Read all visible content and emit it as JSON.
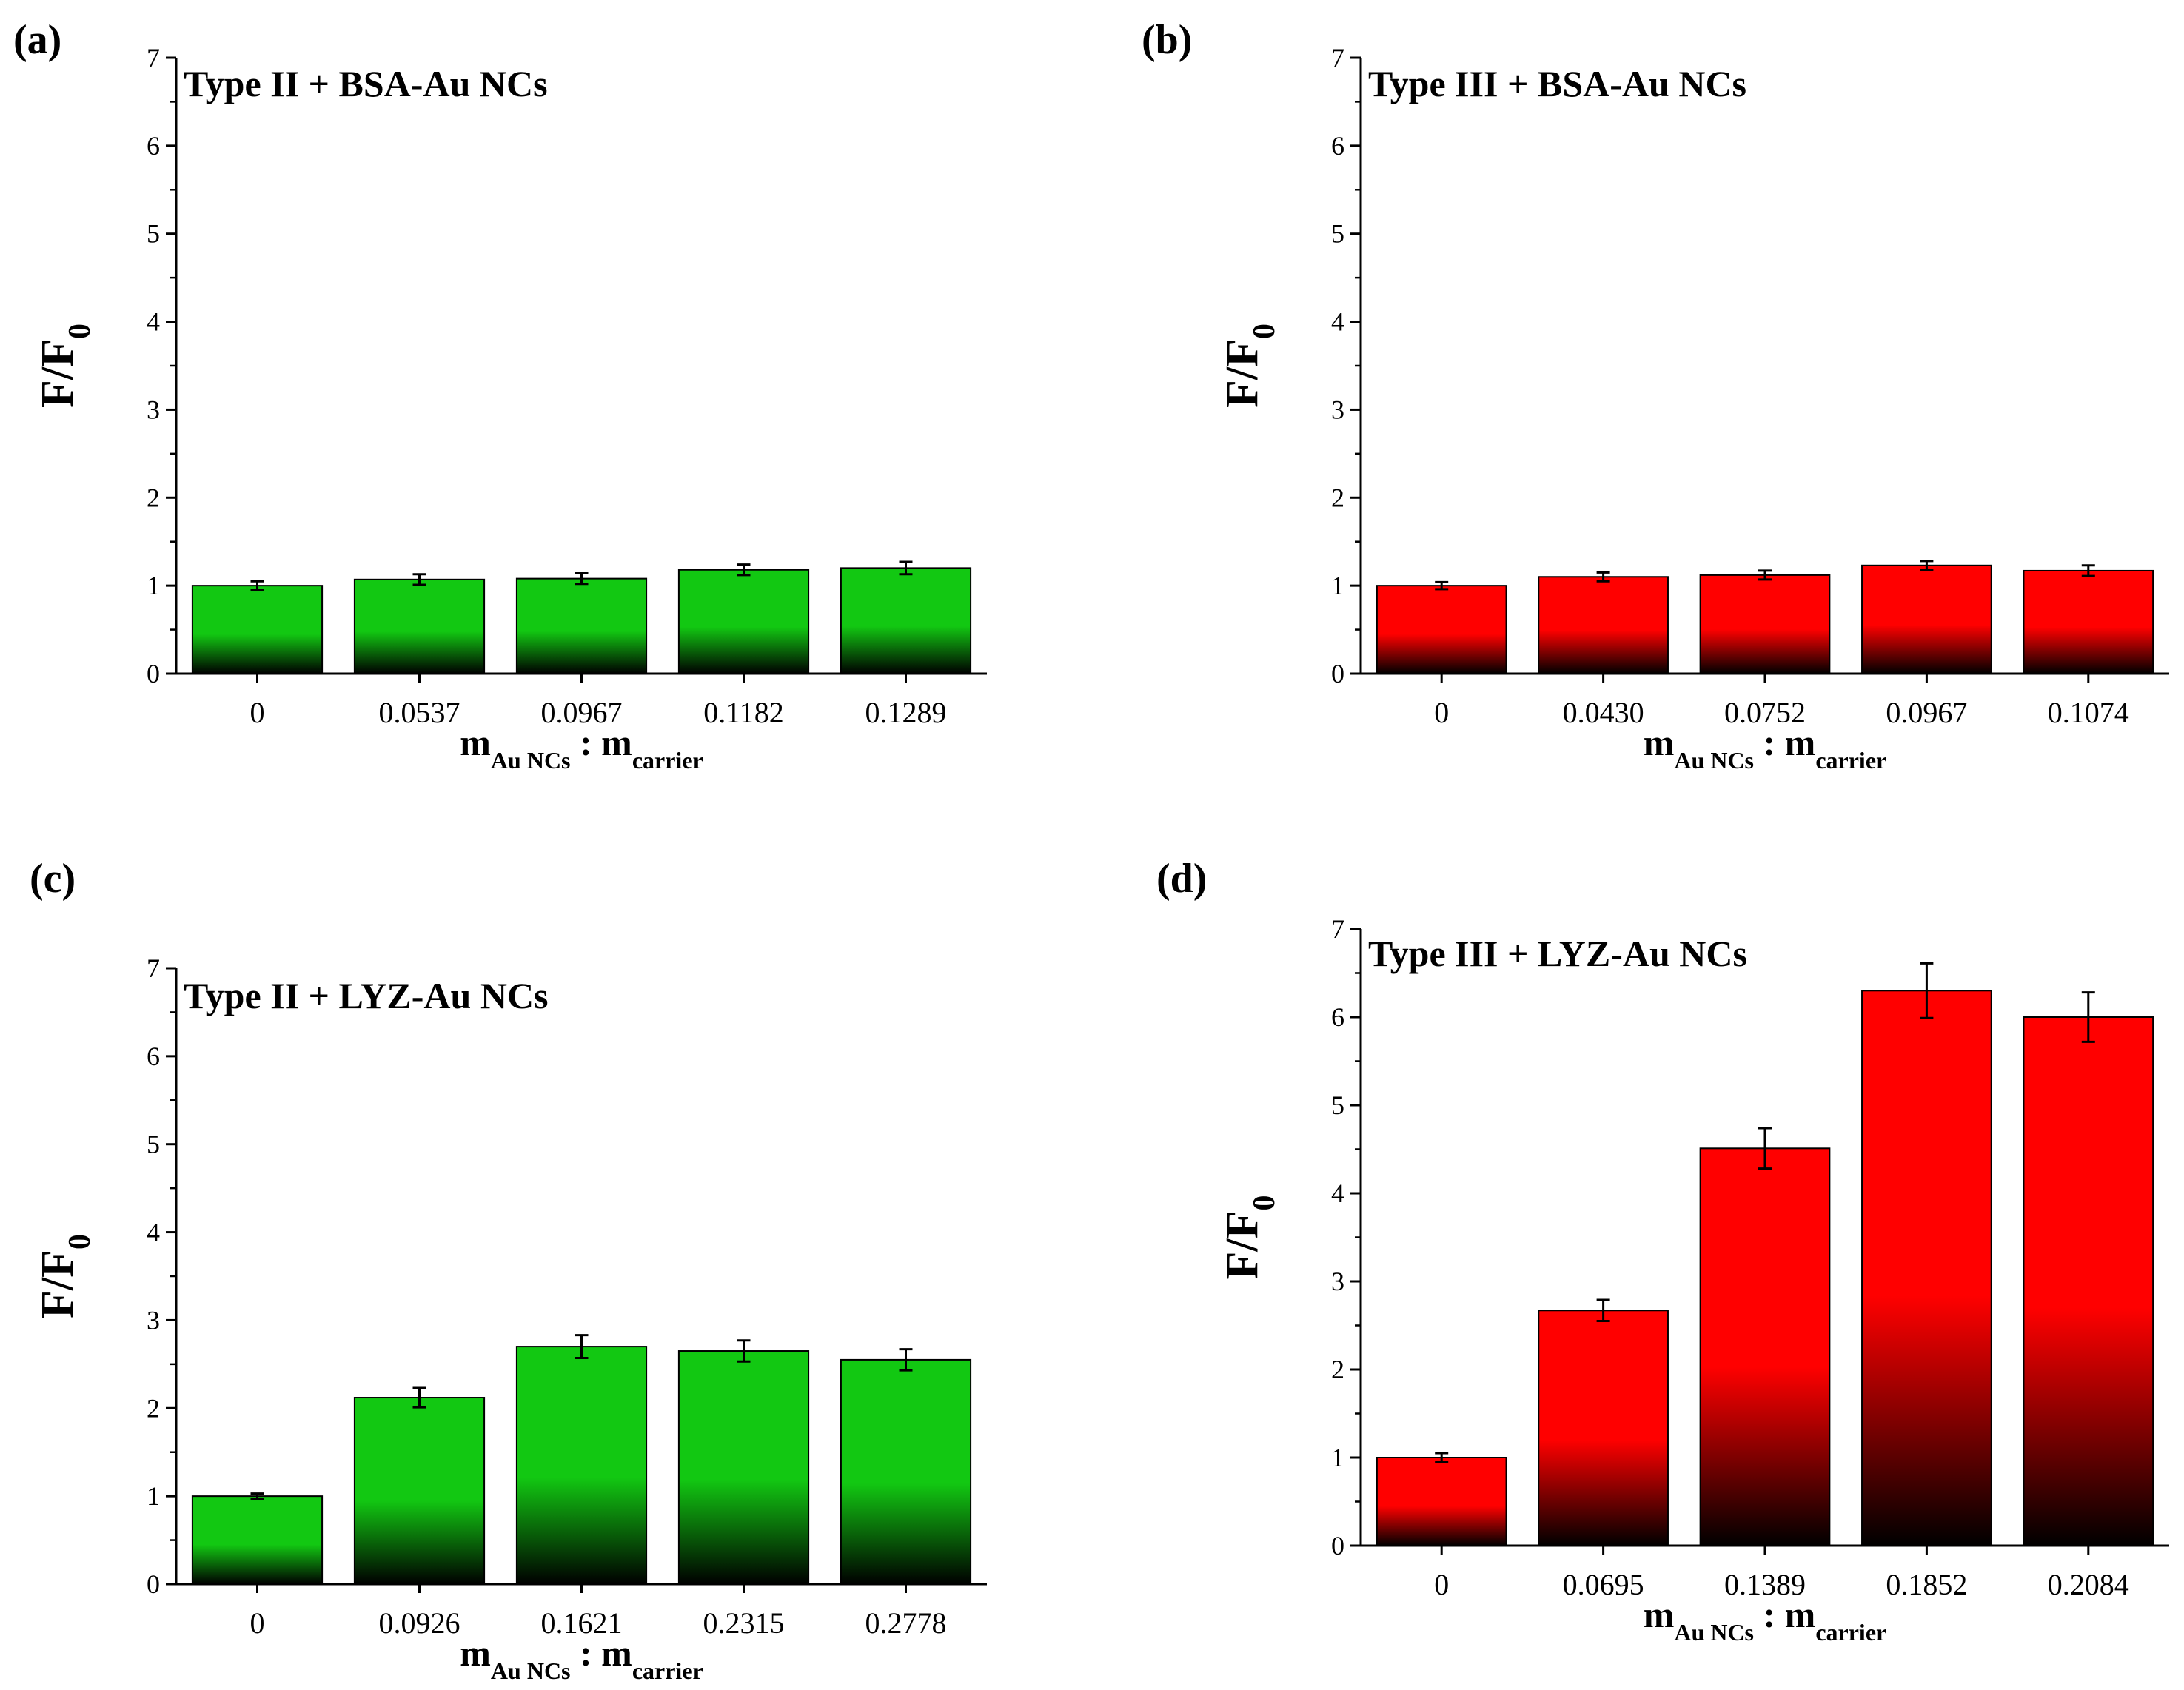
{
  "figure": {
    "colors": {
      "green": "#12c812",
      "red": "#ff0000",
      "base": "#000000"
    }
  },
  "chart_data": [
    {
      "panel": "(a)",
      "type": "bar",
      "title": "Type II + BSA-Au NCs",
      "color": "green",
      "categories": [
        "0",
        "0.0537",
        "0.0967",
        "0.1182",
        "0.1289"
      ],
      "values": [
        1.0,
        1.07,
        1.08,
        1.18,
        1.2
      ],
      "errors": [
        0.05,
        0.06,
        0.06,
        0.06,
        0.07
      ],
      "ylabel": {
        "main": "F/F",
        "sub": "0"
      },
      "xlabel": {
        "m1": "m",
        "s1": "Au NCs",
        "sep": " : ",
        "m2": "m",
        "s2": "carrier"
      },
      "ylim": [
        0,
        7
      ],
      "yticks": [
        "0",
        "1",
        "2",
        "3",
        "4",
        "5",
        "6",
        "7"
      ]
    },
    {
      "panel": "(b)",
      "type": "bar",
      "title": "Type III + BSA-Au NCs",
      "color": "red",
      "categories": [
        "0",
        "0.0430",
        "0.0752",
        "0.0967",
        "0.1074"
      ],
      "values": [
        1.0,
        1.1,
        1.12,
        1.23,
        1.17
      ],
      "errors": [
        0.04,
        0.05,
        0.05,
        0.05,
        0.06
      ],
      "ylabel": {
        "main": "F/F",
        "sub": "0"
      },
      "xlabel": {
        "m1": "m",
        "s1": "Au NCs",
        "sep": " : ",
        "m2": "m",
        "s2": "carrier"
      },
      "ylim": [
        0,
        7
      ],
      "yticks": [
        "0",
        "1",
        "2",
        "3",
        "4",
        "5",
        "6",
        "7"
      ]
    },
    {
      "panel": "(c)",
      "type": "bar",
      "title": "Type II + LYZ-Au NCs",
      "color": "green",
      "categories": [
        "0",
        "0.0926",
        "0.1621",
        "0.2315",
        "0.2778"
      ],
      "values": [
        1.0,
        2.12,
        2.7,
        2.65,
        2.55
      ],
      "errors": [
        0.03,
        0.11,
        0.13,
        0.12,
        0.12
      ],
      "ylabel": {
        "main": "F/F",
        "sub": "0"
      },
      "xlabel": {
        "m1": "m",
        "s1": "Au NCs",
        "sep": " : ",
        "m2": "m",
        "s2": "carrier"
      },
      "ylim": [
        0,
        7
      ],
      "yticks": [
        "0",
        "1",
        "2",
        "3",
        "4",
        "5",
        "6",
        "7"
      ]
    },
    {
      "panel": "(d)",
      "type": "bar",
      "title": "Type III + LYZ-Au NCs",
      "color": "red",
      "categories": [
        "0",
        "0.0695",
        "0.1389",
        "0.1852",
        "0.2084"
      ],
      "values": [
        1.0,
        2.67,
        4.51,
        6.3,
        6.0
      ],
      "errors": [
        0.05,
        0.12,
        0.23,
        0.31,
        0.28
      ],
      "ylabel": {
        "main": "F/F",
        "sub": "0"
      },
      "xlabel": {
        "m1": "m",
        "s1": "Au NCs",
        "sep": " : ",
        "m2": "m",
        "s2": "carrier"
      },
      "ylim": [
        0,
        7
      ],
      "yticks": [
        "0",
        "1",
        "2",
        "3",
        "4",
        "5",
        "6",
        "7"
      ]
    }
  ]
}
